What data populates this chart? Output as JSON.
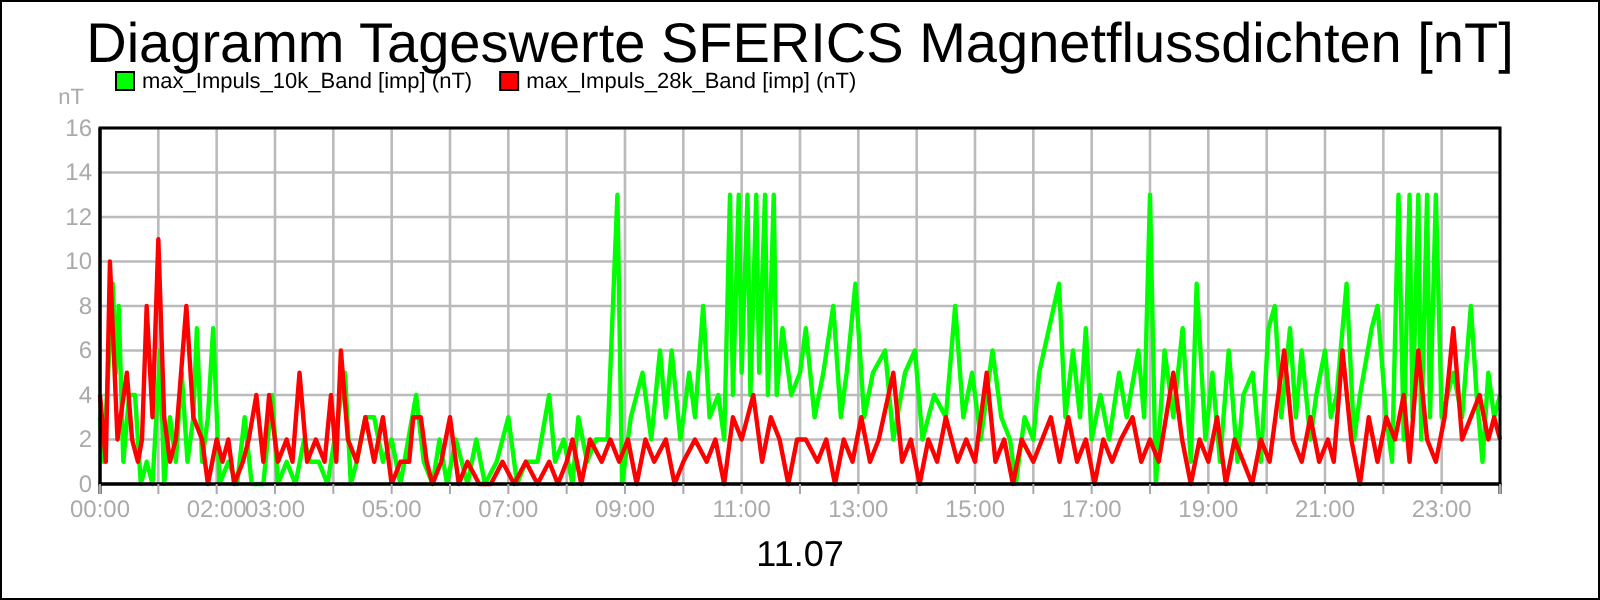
{
  "chart_data": {
    "type": "line",
    "title": "Diagramm Tageswerte SFERICS Magnetflussdichten [nT]",
    "xlabel": "11.07",
    "ylabel": "nT",
    "xlim": [
      0,
      24
    ],
    "ylim": [
      0,
      16
    ],
    "yticks": [
      0,
      2,
      4,
      6,
      8,
      10,
      12,
      14,
      16
    ],
    "xticks": [
      {
        "value": 0,
        "label": "00:00"
      },
      {
        "value": 1,
        "label": null
      },
      {
        "value": 2,
        "label": "02:00"
      },
      {
        "value": 3,
        "label": "03:00"
      },
      {
        "value": 4,
        "label": null
      },
      {
        "value": 5,
        "label": "05:00"
      },
      {
        "value": 6,
        "label": null
      },
      {
        "value": 7,
        "label": "07:00"
      },
      {
        "value": 8,
        "label": null
      },
      {
        "value": 9,
        "label": "09:00"
      },
      {
        "value": 10,
        "label": null
      },
      {
        "value": 11,
        "label": "11:00"
      },
      {
        "value": 12,
        "label": null
      },
      {
        "value": 13,
        "label": "13:00"
      },
      {
        "value": 14,
        "label": null
      },
      {
        "value": 15,
        "label": "15:00"
      },
      {
        "value": 16,
        "label": null
      },
      {
        "value": 17,
        "label": "17:00"
      },
      {
        "value": 18,
        "label": null
      },
      {
        "value": 19,
        "label": "19:00"
      },
      {
        "value": 20,
        "label": null
      },
      {
        "value": 21,
        "label": "21:00"
      },
      {
        "value": 22,
        "label": null
      },
      {
        "value": 23,
        "label": "23:00"
      },
      {
        "value": 24,
        "label": null
      }
    ],
    "grid": true,
    "legend": "top left",
    "marker": "none",
    "line_style": "solid",
    "series": [
      {
        "name": "max_Impuls_10k_Band [imp] (nT)",
        "color": "#00ff00",
        "x": [
          0,
          0.06,
          0.22,
          0.27,
          0.32,
          0.4,
          0.5,
          0.6,
          0.7,
          0.8,
          0.9,
          1.03,
          1.1,
          1.2,
          1.3,
          1.4,
          1.5,
          1.6,
          1.66,
          1.75,
          1.85,
          1.94,
          2.05,
          2.2,
          2.35,
          2.48,
          2.6,
          2.8,
          2.95,
          3.05,
          3.2,
          3.35,
          3.5,
          3.6,
          3.75,
          3.9,
          4.2,
          4.3,
          4.4,
          4.55,
          4.7,
          4.85,
          5.0,
          5.15,
          5.42,
          5.55,
          5.7,
          5.82,
          5.95,
          6.1,
          6.3,
          6.45,
          6.6,
          6.8,
          7.0,
          7.15,
          7.3,
          7.5,
          7.7,
          7.8,
          7.95,
          8.1,
          8.2,
          8.35,
          8.5,
          8.7,
          8.87,
          8.95,
          9.1,
          9.3,
          9.45,
          9.6,
          9.7,
          9.8,
          9.95,
          10.1,
          10.2,
          10.34,
          10.45,
          10.6,
          10.7,
          10.8,
          10.85,
          10.95,
          11.0,
          11.1,
          11.15,
          11.25,
          11.3,
          11.4,
          11.45,
          11.55,
          11.6,
          11.7,
          11.85,
          12.0,
          12.1,
          12.25,
          12.4,
          12.57,
          12.7,
          12.8,
          12.95,
          13.1,
          13.25,
          13.46,
          13.6,
          13.8,
          13.97,
          14.1,
          14.3,
          14.5,
          14.66,
          14.8,
          14.95,
          15.1,
          15.3,
          15.45,
          15.6,
          15.7,
          15.85,
          16.0,
          16.1,
          16.27,
          16.44,
          16.55,
          16.68,
          16.8,
          16.9,
          17.0,
          17.15,
          17.3,
          17.47,
          17.6,
          17.8,
          17.9,
          18.0,
          18.1,
          18.25,
          18.4,
          18.56,
          18.7,
          18.8,
          18.95,
          19.07,
          19.2,
          19.35,
          19.5,
          19.6,
          19.76,
          19.9,
          20.03,
          20.14,
          20.25,
          20.4,
          20.5,
          20.6,
          20.75,
          20.85,
          21.0,
          21.1,
          21.2,
          21.37,
          21.5,
          21.6,
          21.8,
          21.9,
          22.05,
          22.15,
          22.26,
          22.35,
          22.45,
          22.5,
          22.6,
          22.65,
          22.75,
          22.8,
          22.9,
          23.0,
          23.2,
          23.35,
          23.5,
          23.6,
          23.7,
          23.8,
          23.9,
          24
        ],
        "values": [
          3,
          1,
          9,
          5,
          8,
          1,
          4,
          4,
          0,
          1,
          0,
          6,
          0,
          3,
          1,
          5,
          1,
          3,
          7,
          1,
          3,
          7,
          0,
          1,
          0,
          3,
          0,
          0,
          4,
          0,
          1,
          0,
          2,
          1,
          1,
          0,
          5,
          0,
          1,
          3,
          3,
          1,
          2,
          0,
          4,
          1,
          0,
          2,
          0,
          2,
          0,
          2,
          0,
          1,
          3,
          0,
          1,
          1,
          4,
          1,
          2,
          0,
          3,
          1,
          2,
          2,
          13,
          0,
          3,
          5,
          2,
          6,
          3,
          6,
          2,
          5,
          3,
          8,
          3,
          4,
          2,
          13,
          4,
          13,
          5,
          13,
          4,
          13,
          5,
          13,
          4,
          13,
          4,
          7,
          4,
          5,
          7,
          3,
          5,
          8,
          3,
          5,
          9,
          3,
          5,
          6,
          2,
          5,
          6,
          2,
          4,
          3,
          8,
          3,
          5,
          2,
          6,
          3,
          2,
          0,
          3,
          2,
          5,
          7,
          9,
          3,
          6,
          3,
          7,
          2,
          4,
          2,
          5,
          3,
          6,
          3,
          13,
          0,
          6,
          3,
          7,
          1,
          9,
          2,
          5,
          1,
          6,
          1,
          4,
          5,
          1,
          7,
          8,
          3,
          7,
          3,
          6,
          2,
          4,
          6,
          3,
          4,
          9,
          2,
          4,
          7,
          8,
          3,
          1,
          13,
          2,
          13,
          3,
          13,
          2,
          13,
          3,
          13,
          3,
          5,
          3,
          8,
          4,
          1,
          5,
          3,
          4
        ]
      },
      {
        "name": "max_Impuls_28k_Band [imp] (nT)",
        "color": "#ff0000",
        "x": [
          0,
          0.1,
          0.17,
          0.3,
          0.46,
          0.55,
          0.65,
          0.72,
          0.8,
          0.9,
          1.0,
          1.1,
          1.2,
          1.3,
          1.48,
          1.6,
          1.75,
          1.85,
          2.0,
          2.1,
          2.2,
          2.3,
          2.45,
          2.55,
          2.68,
          2.8,
          2.9,
          3.05,
          3.2,
          3.3,
          3.42,
          3.55,
          3.7,
          3.85,
          3.96,
          4.05,
          4.13,
          4.25,
          4.4,
          4.55,
          4.7,
          4.85,
          5.0,
          5.15,
          5.3,
          5.37,
          5.5,
          5.6,
          5.7,
          5.85,
          6.0,
          6.15,
          6.3,
          6.5,
          6.7,
          6.9,
          7.1,
          7.3,
          7.5,
          7.7,
          7.85,
          8.0,
          8.1,
          8.25,
          8.4,
          8.6,
          8.75,
          8.9,
          9.05,
          9.2,
          9.35,
          9.5,
          9.7,
          9.85,
          10.0,
          10.2,
          10.4,
          10.55,
          10.7,
          10.85,
          11.0,
          11.2,
          11.35,
          11.5,
          11.65,
          11.8,
          11.95,
          12.1,
          12.3,
          12.45,
          12.6,
          12.75,
          12.9,
          13.05,
          13.2,
          13.35,
          13.6,
          13.75,
          13.9,
          14.05,
          14.2,
          14.35,
          14.5,
          14.7,
          14.85,
          15.0,
          15.2,
          15.35,
          15.5,
          15.65,
          15.8,
          16.0,
          16.15,
          16.3,
          16.45,
          16.6,
          16.75,
          16.9,
          17.05,
          17.2,
          17.35,
          17.5,
          17.7,
          17.85,
          18.0,
          18.15,
          18.4,
          18.55,
          18.7,
          18.85,
          19.0,
          19.15,
          19.3,
          19.45,
          19.6,
          19.75,
          19.9,
          20.05,
          20.3,
          20.45,
          20.6,
          20.75,
          20.9,
          21.05,
          21.15,
          21.3,
          21.45,
          21.6,
          21.75,
          21.9,
          22.05,
          22.2,
          22.35,
          22.45,
          22.6,
          22.75,
          22.9,
          23.05,
          23.2,
          23.35,
          23.5,
          23.65,
          23.8,
          23.9,
          24
        ],
        "values": [
          4,
          1,
          10,
          2,
          5,
          2,
          1,
          2,
          8,
          3,
          11,
          3,
          1,
          2,
          8,
          3,
          2,
          0,
          2,
          1,
          2,
          0,
          1,
          2,
          4,
          1,
          4,
          1,
          2,
          1,
          5,
          1,
          2,
          1,
          4,
          1,
          6,
          2,
          1,
          3,
          1,
          3,
          0,
          1,
          1,
          3,
          3,
          1,
          0,
          1,
          3,
          0,
          1,
          0,
          0,
          1,
          0,
          1,
          0,
          1,
          0,
          1,
          2,
          0,
          2,
          1,
          2,
          1,
          2,
          0,
          2,
          1,
          2,
          0,
          1,
          2,
          1,
          2,
          0,
          3,
          2,
          4,
          1,
          3,
          2,
          0,
          2,
          2,
          1,
          2,
          0,
          2,
          1,
          3,
          1,
          2,
          5,
          1,
          2,
          0,
          2,
          1,
          3,
          1,
          2,
          1,
          5,
          1,
          2,
          0,
          2,
          1,
          2,
          3,
          1,
          3,
          1,
          2,
          0,
          2,
          1,
          2,
          3,
          1,
          2,
          1,
          5,
          2,
          0,
          2,
          1,
          3,
          0,
          2,
          1,
          0,
          2,
          1,
          6,
          2,
          1,
          3,
          1,
          2,
          1,
          6,
          2,
          0,
          3,
          1,
          3,
          2,
          4,
          1,
          6,
          2,
          1,
          3,
          7,
          2,
          3,
          4,
          2,
          3,
          2
        ]
      }
    ]
  }
}
